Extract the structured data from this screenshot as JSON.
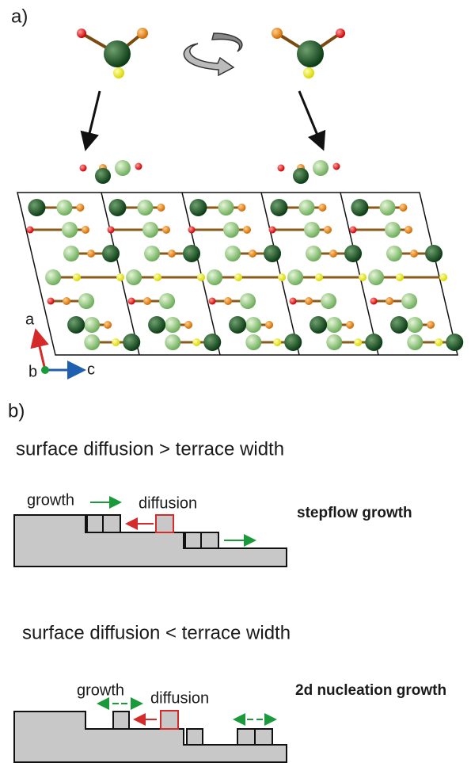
{
  "panel_a": {
    "label": "a)",
    "axes": {
      "a": "a",
      "b": "b",
      "c": "c"
    }
  },
  "panel_b": {
    "label": "b)",
    "cases": [
      {
        "condition": "surface diffusion > terrace width",
        "growth_label": "growth",
        "diffusion_label": "diffusion",
        "result": "stepflow growth"
      },
      {
        "condition": "surface diffusion < terrace width",
        "growth_label": "growth",
        "diffusion_label": "diffusion",
        "result": "2d nucleation growth"
      }
    ]
  }
}
